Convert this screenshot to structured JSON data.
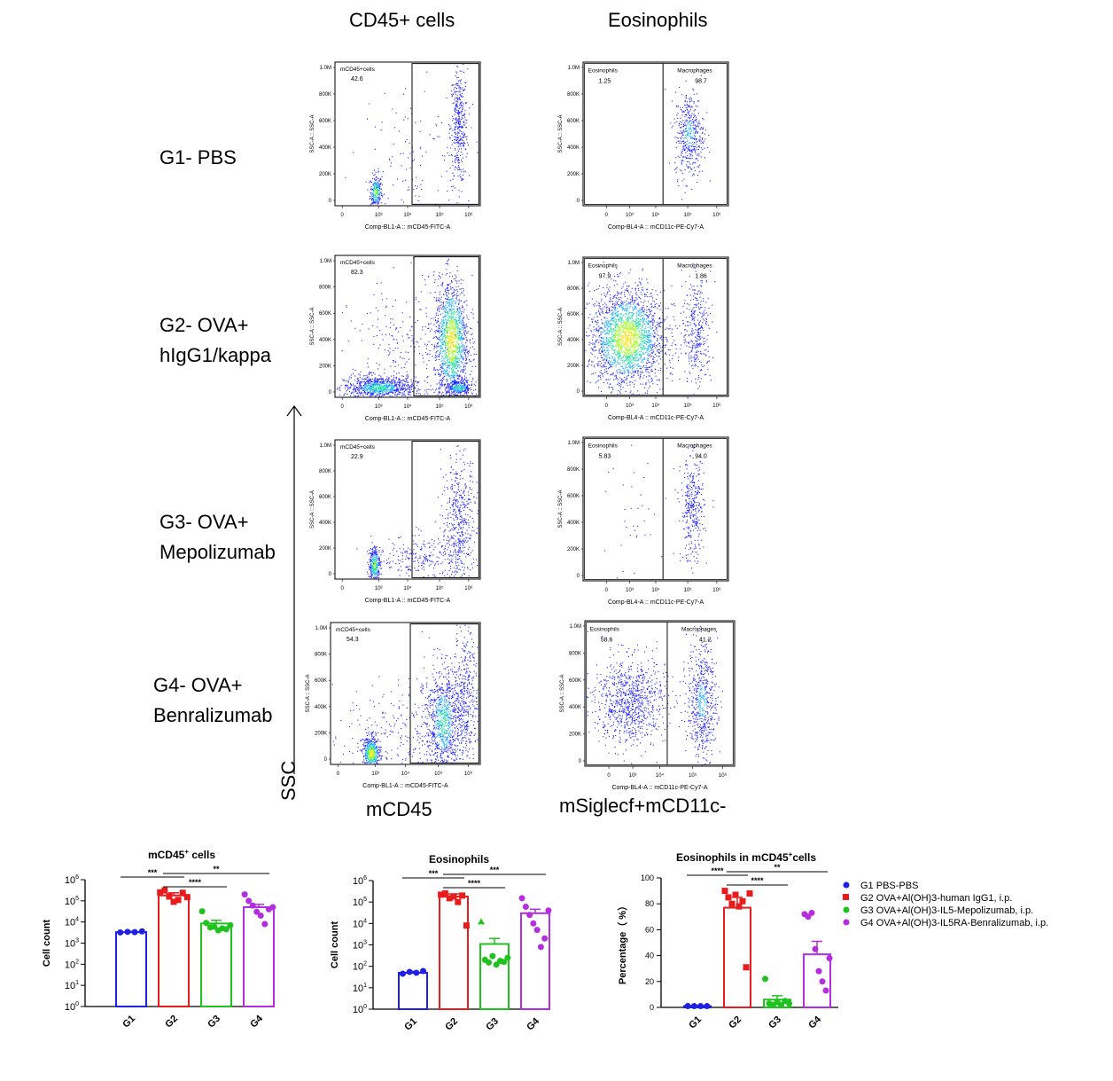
{
  "headers": {
    "cd45": "CD45+ cells",
    "eos": "Eosinophils"
  },
  "groups": [
    {
      "lines": [
        "G1- PBS"
      ]
    },
    {
      "lines": [
        "G2- OVA+",
        "hIgG1/kappa"
      ]
    },
    {
      "lines": [
        "G3- OVA+",
        "Mepolizumab"
      ]
    },
    {
      "lines": [
        "G4- OVA+",
        "Benralizumab"
      ]
    }
  ],
  "flow": {
    "ssc_label": "SSC",
    "cd45_xlabel": "mCD45",
    "eos_xlabel": "mSiglecf+mCD11c-",
    "y_axis_label": "SSC-A :: SSC-A",
    "y_ticks": [
      "1.0M",
      "800K",
      "600K",
      "400K",
      "200K",
      "0"
    ],
    "x_ticks": [
      "0",
      "10³",
      "10⁴",
      "10⁵",
      "10⁶"
    ],
    "cd45_axis_title": "Comp-BL1-A :: mCD45-FITC-A",
    "eos_axis_title": "Comp-BL4-A :: mCD11c-PE-Cy7-A",
    "gate_cd45": "mCD45+cells",
    "gate_eos": "Eosinophils",
    "gate_mac": "Macrophages",
    "cd45_values": [
      "42.6",
      "82.3",
      "22.9",
      "54.3"
    ],
    "eos_values": [
      "1.25",
      "97.9",
      "5.83",
      "58.6"
    ],
    "mac_values": [
      "98.7",
      "1.86",
      "94.0",
      "41.2"
    ]
  },
  "legend": [
    {
      "label": "G1 PBS-PBS",
      "color": "#1f1fe6",
      "marker": "circle"
    },
    {
      "label": "G2 OVA+Al(OH)3-human IgG1, i.p.",
      "color": "#e81c1c",
      "marker": "square"
    },
    {
      "label": "G3 OVA+Al(OH)3-IL5-Mepolizumab, i.p.",
      "color": "#1fc21f",
      "marker": "circle"
    },
    {
      "label": "G4 OVA+Al(OH)3-IL5RA-Benralizumab, i.p.",
      "color": "#b42ee0",
      "marker": "circle"
    }
  ],
  "chart_data": [
    {
      "type": "bar",
      "title": "mCD45",
      "title_sup": "+",
      "title_tail": " cells",
      "ylabel": "Cell count",
      "yscale": "log",
      "ylim": [
        1,
        1000000
      ],
      "categories": [
        "G1",
        "G2",
        "G3",
        "G4"
      ],
      "values": [
        3300,
        180000,
        8500,
        50000
      ],
      "errors": [
        300,
        60000,
        3500,
        18000
      ],
      "points": [
        [
          3200,
          3400,
          3300,
          3600
        ],
        [
          250000,
          310000,
          160000,
          90000,
          110000,
          240000,
          150000
        ],
        [
          32000,
          9000,
          5500,
          6000,
          4000,
          5000,
          4500,
          7000
        ],
        [
          200000,
          100000,
          60000,
          30000,
          20000,
          8000,
          40000,
          50000
        ]
      ],
      "significance": [
        {
          "text": "***"
        },
        {
          "text": "****"
        },
        {
          "text": "**"
        }
      ],
      "colors": [
        "#1f1fe6",
        "#e81c1c",
        "#1fc21f",
        "#b42ee0"
      ]
    },
    {
      "type": "bar",
      "title": "Eosinophils",
      "ylabel": "Cell count",
      "yscale": "log",
      "ylim": [
        1,
        1000000
      ],
      "categories": [
        "G1",
        "G2",
        "G3",
        "G4"
      ],
      "values": [
        50,
        180000,
        1100,
        30000
      ],
      "errors": [
        8,
        60000,
        900,
        16000
      ],
      "points": [
        [
          45,
          55,
          50,
          60
        ],
        [
          220000,
          250000,
          150000,
          180000,
          100000,
          200000,
          8000
        ],
        [
          12000,
          200,
          150,
          300,
          120,
          180,
          160,
          250
        ],
        [
          150000,
          60000,
          25000,
          10000,
          5000,
          800,
          2000,
          40000
        ]
      ],
      "significance": [
        {
          "text": "***"
        },
        {
          "text": "****"
        },
        {
          "text": "***"
        }
      ],
      "colors": [
        "#1f1fe6",
        "#e81c1c",
        "#1fc21f",
        "#b42ee0"
      ]
    },
    {
      "type": "bar",
      "title": "Eosinophils in mCD45",
      "title_sup": "+",
      "title_tail": "cells",
      "ylabel": "Percentage（ %）",
      "yscale": "linear",
      "ylim": [
        0,
        100
      ],
      "yticks": [
        0,
        20,
        40,
        60,
        80,
        100
      ],
      "categories": [
        "G1",
        "G2",
        "G3",
        "G4"
      ],
      "values": [
        1,
        77,
        6,
        41
      ],
      "errors": [
        0.5,
        8,
        3,
        10
      ],
      "points": [
        [
          1,
          1,
          1,
          1
        ],
        [
          90,
          85,
          80,
          87,
          78,
          82,
          31,
          88
        ],
        [
          22,
          3,
          2,
          4,
          2,
          5,
          3
        ],
        [
          72,
          70,
          73,
          45,
          28,
          20,
          13,
          38
        ]
      ],
      "significance": [
        {
          "text": "****"
        },
        {
          "text": "****"
        },
        {
          "text": "**"
        }
      ],
      "colors": [
        "#1f1fe6",
        "#e81c1c",
        "#1fc21f",
        "#b42ee0"
      ]
    }
  ]
}
